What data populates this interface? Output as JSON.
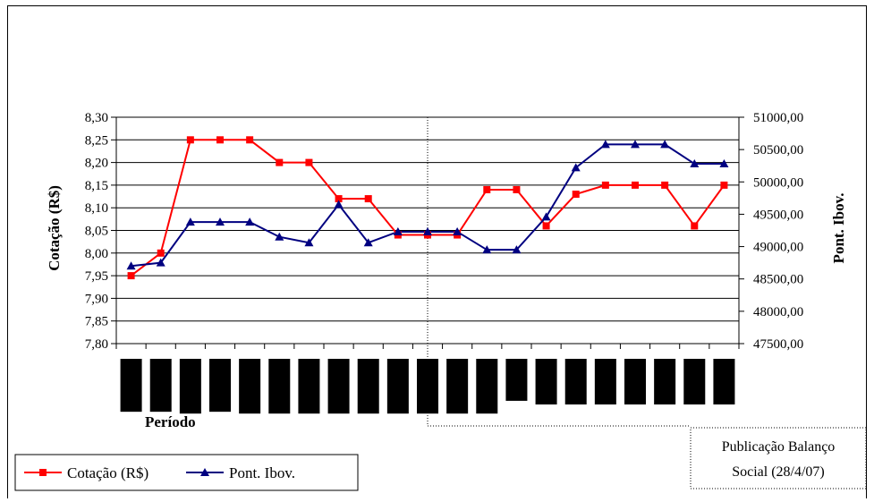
{
  "chart_data": {
    "type": "line",
    "categories": [
      "",
      "",
      "",
      "",
      "",
      "",
      "",
      "",
      "",
      "",
      "",
      "",
      "",
      "",
      "",
      "",
      "",
      "",
      "",
      "",
      ""
    ],
    "xlabel": "Período",
    "y_left": {
      "label": "Cotação (R$)",
      "lim": [
        7.8,
        8.3
      ],
      "ticks": [
        "8,30",
        "8,25",
        "8,20",
        "8,15",
        "8,10",
        "8,05",
        "8,00",
        "7,95",
        "7,90",
        "7,85",
        "7,80"
      ]
    },
    "y_right": {
      "label": "Pont. Ibov.",
      "lim": [
        47500,
        51000
      ],
      "ticks": [
        "51000,00",
        "50500,00",
        "50000,00",
        "49500,00",
        "49000,00",
        "48500,00",
        "48000,00",
        "47500,00"
      ]
    },
    "grid": true,
    "series": [
      {
        "name": "Cotação (R$)",
        "axis": "left",
        "color": "#ff0000",
        "marker": "square",
        "values": [
          7.95,
          8.0,
          8.25,
          8.25,
          8.25,
          8.2,
          8.2,
          8.12,
          8.12,
          8.04,
          8.04,
          8.04,
          8.14,
          8.14,
          8.06,
          8.13,
          8.15,
          8.15,
          8.15,
          8.06,
          8.15
        ]
      },
      {
        "name": "Pont. Ibov.",
        "axis": "right",
        "color": "#000080",
        "marker": "triangle",
        "values": [
          48700,
          48750,
          49380,
          49380,
          49380,
          49150,
          49060,
          49650,
          49060,
          49230,
          49230,
          49230,
          48950,
          48950,
          49460,
          50220,
          50580,
          50580,
          50580,
          50280,
          50280
        ]
      }
    ],
    "annotation": {
      "text_line1": "Publicação Balanço",
      "text_line2": "Social (28/4/07)",
      "category_index": 10
    },
    "legend": {
      "placement": "bottom-left"
    },
    "category_label_bar_depths": [
      0.58,
      0.58,
      0.6,
      0.58,
      0.6,
      0.6,
      0.6,
      0.6,
      0.6,
      0.6,
      0.6,
      0.6,
      0.6,
      0.46,
      0.5,
      0.5,
      0.5,
      0.5,
      0.5,
      0.5,
      0.5
    ]
  }
}
